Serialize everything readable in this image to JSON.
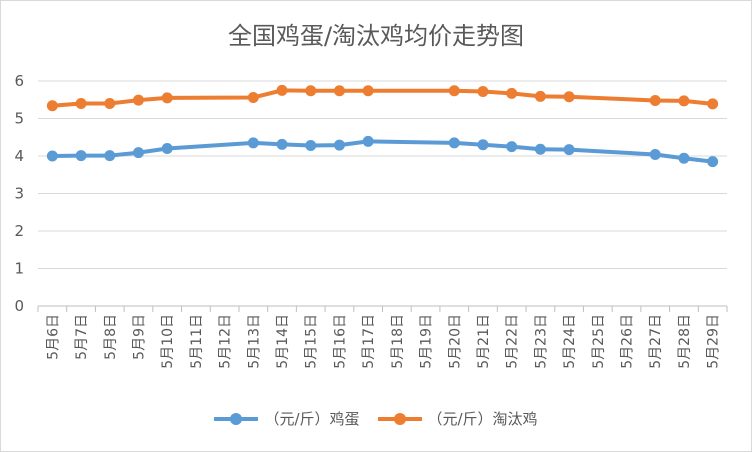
{
  "chart_data": {
    "type": "line",
    "title": "全国鸡蛋/淘汰鸡均价走势图",
    "ylim": [
      0,
      6
    ],
    "yticks": [
      0,
      1,
      2,
      3,
      4,
      5,
      6
    ],
    "grid": "horizontal",
    "legend_position": "bottom",
    "categories": [
      "5月6日",
      "5月7日",
      "5月8日",
      "5月9日",
      "5月10日",
      "5月11日",
      "5月12日",
      "5月13日",
      "5月14日",
      "5月15日",
      "5月16日",
      "5月17日",
      "5月18日",
      "5月19日",
      "5月20日",
      "5月21日",
      "5月22日",
      "5月23日",
      "5月24日",
      "5月25日",
      "5月26日",
      "5月27日",
      "5月28日",
      "5月29日"
    ],
    "series": [
      {
        "name": "（元/斤）鸡蛋",
        "color": "#5b9bd5",
        "values": [
          4.0,
          4.01,
          4.01,
          4.09,
          4.2,
          null,
          null,
          4.35,
          4.31,
          4.28,
          4.29,
          4.39,
          null,
          null,
          4.35,
          4.3,
          4.25,
          4.18,
          4.17,
          null,
          null,
          4.04,
          3.94,
          3.85
        ]
      },
      {
        "name": "（元/斤）淘汰鸡",
        "color": "#ed7d31",
        "values": [
          5.34,
          5.4,
          5.4,
          5.49,
          5.55,
          null,
          null,
          5.56,
          5.75,
          5.74,
          5.74,
          5.74,
          null,
          null,
          5.74,
          5.72,
          5.67,
          5.59,
          5.58,
          null,
          null,
          5.48,
          5.47,
          5.39
        ]
      }
    ]
  }
}
